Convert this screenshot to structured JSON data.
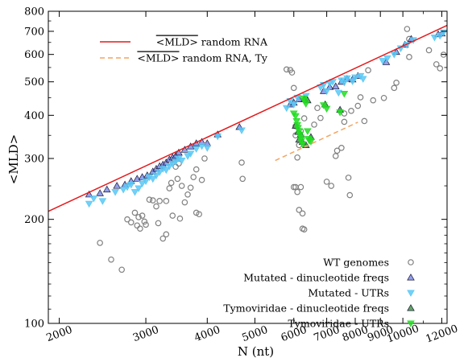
{
  "chart_data": {
    "type": "scatter",
    "title": "",
    "xlabel": "N (nt)",
    "ylabel": "<MLD>",
    "x_scale": "log",
    "y_scale": "log",
    "xlim": [
      1900,
      12300
    ],
    "ylim": [
      100,
      800
    ],
    "x_ticks": [
      "2000",
      "3000",
      "4000",
      "5000",
      "6000",
      "7000",
      "8000",
      "9000",
      "10000",
      "12000"
    ],
    "x_tick_values": [
      2000,
      3000,
      4000,
      5000,
      6000,
      7000,
      8000,
      9000,
      10000,
      12000
    ],
    "y_ticks": [
      "100",
      "200",
      "300",
      "400",
      "500",
      "600",
      "700",
      "800"
    ],
    "y_tick_values": [
      100,
      200,
      300,
      400,
      500,
      600,
      700,
      800
    ],
    "grid": false,
    "legend_position": "top-left (lines), bottom-right (markers)",
    "lines": [
      {
        "name": "random RNA",
        "style": "solid",
        "color": "#e41a1c",
        "x": [
          1900,
          12300
        ],
        "y": [
          211,
          728
        ]
      },
      {
        "name": "random RNA, Ty",
        "style": "dashed",
        "color": "#f4a460",
        "x": [
          5500,
          8100
        ],
        "y": [
          296,
          382
        ]
      }
    ],
    "series": [
      {
        "name": "WT genomes",
        "marker": "circle",
        "color": "#808080",
        "points": [
          [
            2420,
            171
          ],
          [
            2550,
            153
          ],
          [
            2680,
            143
          ],
          [
            2750,
            200
          ],
          [
            2800,
            196
          ],
          [
            2850,
            209
          ],
          [
            2880,
            192
          ],
          [
            2900,
            203
          ],
          [
            2920,
            188
          ],
          [
            2950,
            205
          ],
          [
            2980,
            197
          ],
          [
            3000,
            193
          ],
          [
            3050,
            228
          ],
          [
            3100,
            227
          ],
          [
            3150,
            218
          ],
          [
            3180,
            195
          ],
          [
            3200,
            226
          ],
          [
            3250,
            176
          ],
          [
            3300,
            181
          ],
          [
            3300,
            226
          ],
          [
            3350,
            246
          ],
          [
            3380,
            255
          ],
          [
            3400,
            205
          ],
          [
            3420,
            298
          ],
          [
            3450,
            284
          ],
          [
            3480,
            262
          ],
          [
            3500,
            290
          ],
          [
            3520,
            201
          ],
          [
            3550,
            250
          ],
          [
            3600,
            224
          ],
          [
            3650,
            236
          ],
          [
            3700,
            247
          ],
          [
            3750,
            265
          ],
          [
            3800,
            279
          ],
          [
            3800,
            209
          ],
          [
            3850,
            207
          ],
          [
            3900,
            260
          ],
          [
            3950,
            300
          ],
          [
            4700,
            292
          ],
          [
            4720,
            262
          ],
          [
            5800,
            543
          ],
          [
            5900,
            541
          ],
          [
            5950,
            532
          ],
          [
            6000,
            480
          ],
          [
            6050,
            372
          ],
          [
            6050,
            350
          ],
          [
            6000,
            248
          ],
          [
            6050,
            248
          ],
          [
            6100,
            240
          ],
          [
            6150,
            213
          ],
          [
            6200,
            248
          ],
          [
            6250,
            208
          ],
          [
            6250,
            188
          ],
          [
            6300,
            187
          ],
          [
            6100,
            302
          ],
          [
            6150,
            328
          ],
          [
            6200,
            360
          ],
          [
            6300,
            392
          ],
          [
            6600,
            376
          ],
          [
            6700,
            420
          ],
          [
            6800,
            393
          ],
          [
            7000,
            257
          ],
          [
            7150,
            250
          ],
          [
            7300,
            305
          ],
          [
            7350,
            316
          ],
          [
            7500,
            322
          ],
          [
            7600,
            383
          ],
          [
            7600,
            405
          ],
          [
            7750,
            264
          ],
          [
            7800,
            235
          ],
          [
            7850,
            412
          ],
          [
            8100,
            426
          ],
          [
            8200,
            451
          ],
          [
            8350,
            385
          ],
          [
            8500,
            540
          ],
          [
            8700,
            442
          ],
          [
            9150,
            449
          ],
          [
            9600,
            480
          ],
          [
            9700,
            497
          ],
          [
            10200,
            711
          ],
          [
            10300,
            665
          ],
          [
            10300,
            590
          ],
          [
            11300,
            617
          ],
          [
            11700,
            562
          ],
          [
            11900,
            547
          ],
          [
            12100,
            599
          ]
        ]
      },
      {
        "name": "Mutated - dinucleotide freqs",
        "marker": "triangle-up",
        "color": "#6f7fe6",
        "points": [
          [
            2300,
            236
          ],
          [
            2420,
            238
          ],
          [
            2500,
            244
          ],
          [
            2620,
            250
          ],
          [
            2720,
            252
          ],
          [
            2800,
            258
          ],
          [
            2880,
            262
          ],
          [
            2950,
            265
          ],
          [
            3020,
            268
          ],
          [
            3100,
            275
          ],
          [
            3150,
            280
          ],
          [
            3200,
            285
          ],
          [
            3250,
            288
          ],
          [
            3300,
            292
          ],
          [
            3350,
            298
          ],
          [
            3400,
            302
          ],
          [
            3450,
            305
          ],
          [
            3500,
            312
          ],
          [
            3600,
            318
          ],
          [
            3700,
            325
          ],
          [
            3800,
            332
          ],
          [
            3900,
            335
          ],
          [
            4000,
            332
          ],
          [
            4200,
            352
          ],
          [
            4650,
            370
          ],
          [
            5900,
            430
          ],
          [
            6000,
            435
          ],
          [
            6150,
            445
          ],
          [
            6900,
            470
          ],
          [
            7100,
            483
          ],
          [
            7300,
            485
          ],
          [
            7500,
            500
          ],
          [
            7700,
            510
          ],
          [
            7900,
            508
          ],
          [
            8100,
            520
          ],
          [
            9250,
            570
          ],
          [
            9700,
            610
          ],
          [
            10100,
            640
          ],
          [
            10400,
            665
          ],
          [
            11800,
            686
          ],
          [
            12000,
            690
          ]
        ]
      },
      {
        "name": "Mutated - UTRs",
        "marker": "triangle-down",
        "color": "#5bc8f5",
        "points": [
          [
            2300,
            222
          ],
          [
            2350,
            230
          ],
          [
            2450,
            226
          ],
          [
            2600,
            240
          ],
          [
            2700,
            244
          ],
          [
            2750,
            248
          ],
          [
            2800,
            252
          ],
          [
            2850,
            240
          ],
          [
            2900,
            246
          ],
          [
            2950,
            254
          ],
          [
            3000,
            258
          ],
          [
            3050,
            265
          ],
          [
            3100,
            262
          ],
          [
            3150,
            268
          ],
          [
            3200,
            274
          ],
          [
            3250,
            280
          ],
          [
            3300,
            278
          ],
          [
            3350,
            285
          ],
          [
            3400,
            290
          ],
          [
            3450,
            294
          ],
          [
            3500,
            300
          ],
          [
            3550,
            296
          ],
          [
            3650,
            305
          ],
          [
            3700,
            310
          ],
          [
            3800,
            320
          ],
          [
            3900,
            326
          ],
          [
            4000,
            322
          ],
          [
            4200,
            348
          ],
          [
            4700,
            362
          ],
          [
            5800,
            420
          ],
          [
            5900,
            440
          ],
          [
            6000,
            430
          ],
          [
            6100,
            450
          ],
          [
            6350,
            455
          ],
          [
            6800,
            482
          ],
          [
            6900,
            490
          ],
          [
            7000,
            470
          ],
          [
            7100,
            495
          ],
          [
            7200,
            500
          ],
          [
            7400,
            465
          ],
          [
            7500,
            505
          ],
          [
            7600,
            498
          ],
          [
            7700,
            512
          ],
          [
            7900,
            502
          ],
          [
            8000,
            515
          ],
          [
            8200,
            520
          ],
          [
            8300,
            510
          ],
          [
            9100,
            575
          ],
          [
            9300,
            585
          ],
          [
            9600,
            600
          ],
          [
            9900,
            625
          ],
          [
            10200,
            640
          ],
          [
            10500,
            660
          ],
          [
            11600,
            672
          ],
          [
            11900,
            680
          ],
          [
            12100,
            695
          ]
        ]
      },
      {
        "name": "Tymoviridae - dinucleotide freqs",
        "marker": "triangle-up",
        "color": "#2e8b2e",
        "points": [
          [
            6050,
            373
          ],
          [
            6120,
            358
          ],
          [
            6150,
            340
          ],
          [
            6200,
            352
          ],
          [
            6250,
            335
          ],
          [
            6300,
            445
          ],
          [
            6350,
            328
          ],
          [
            6400,
            442
          ],
          [
            6500,
            346
          ],
          [
            6950,
            430
          ],
          [
            7450,
            415
          ]
        ]
      },
      {
        "name": "Tymoviridae - UTRs",
        "marker": "triangle-down",
        "color": "#22dd22",
        "points": [
          [
            6000,
            405
          ],
          [
            6050,
            398
          ],
          [
            6080,
            385
          ],
          [
            6100,
            375
          ],
          [
            6120,
            368
          ],
          [
            6150,
            360
          ],
          [
            6170,
            352
          ],
          [
            6200,
            345
          ],
          [
            6220,
            338
          ],
          [
            6250,
            330
          ],
          [
            6280,
            448
          ],
          [
            6300,
            440
          ],
          [
            6350,
            432
          ],
          [
            6400,
            360
          ],
          [
            6420,
            342
          ],
          [
            6450,
            338
          ],
          [
            6500,
            336
          ],
          [
            6900,
            428
          ],
          [
            7000,
            418
          ],
          [
            7450,
            408
          ],
          [
            7600,
            462
          ]
        ]
      }
    ],
    "legend_lines": [
      {
        "overline": "<MLD>",
        "suffix": " random RNA"
      },
      {
        "overline": "<MLD>",
        "suffix": " random RNA, Ty"
      }
    ],
    "legend_markers": [
      "WT genomes",
      "Mutated - dinucleotide freqs",
      "Mutated - UTRs",
      "Tymoviridae - dinucleotide freqs",
      "Tymoviridae - UTRs"
    ]
  }
}
